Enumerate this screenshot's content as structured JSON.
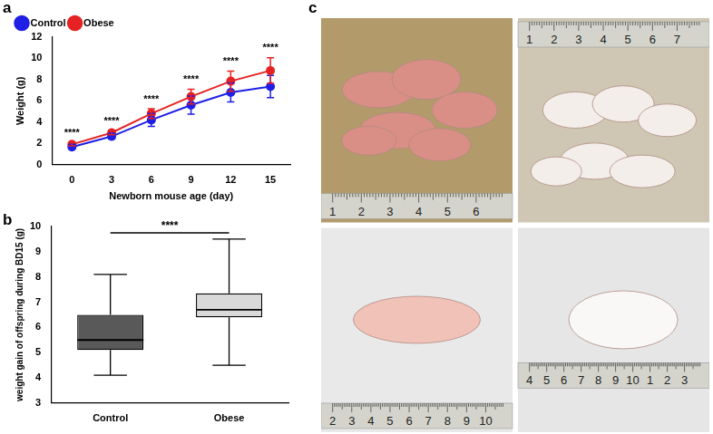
{
  "chart_data": [
    {
      "panel": "a",
      "type": "line",
      "categories": [
        "0",
        "3",
        "6",
        "9",
        "12",
        "15"
      ],
      "x_label": "Newborn mouse age (day)",
      "y_label": "Weight (g)",
      "ylim": [
        0,
        12
      ],
      "yticks": [
        0,
        2,
        4,
        6,
        8,
        10,
        12
      ],
      "grid": false,
      "legend": "top-left",
      "marker": "circle",
      "series": [
        {
          "name": "Control",
          "color": "#1f1fe6",
          "values": [
            1.65,
            2.65,
            4.2,
            5.6,
            6.8,
            7.35
          ],
          "errors": [
            0.15,
            0.25,
            0.6,
            0.85,
            0.9,
            1.05
          ]
        },
        {
          "name": "Obese",
          "color": "#e62222",
          "values": [
            1.9,
            3.0,
            4.8,
            6.4,
            7.85,
            8.85
          ],
          "errors": [
            0.15,
            0.2,
            0.45,
            0.7,
            0.95,
            1.2
          ]
        }
      ],
      "significance": [
        "****",
        "****",
        "****",
        "****",
        "****",
        "****"
      ]
    },
    {
      "panel": "b",
      "type": "box",
      "categories": [
        "Control",
        "Obese"
      ],
      "y_label": "weight gain of offspring during BD15 (g)",
      "ylim": [
        3,
        10
      ],
      "yticks": [
        3,
        4,
        5,
        6,
        7,
        8,
        9,
        10
      ],
      "grid": false,
      "colors": [
        "#595959",
        "#d9d9d9"
      ],
      "boxes": [
        {
          "min": 4.1,
          "q1": 5.1,
          "median": 5.5,
          "q3": 6.5,
          "max": 8.1
        },
        {
          "min": 4.5,
          "q1": 6.4,
          "median": 6.7,
          "q3": 7.35,
          "max": 9.5
        }
      ],
      "significance": "****"
    }
  ],
  "panel_c": {
    "panel": "c",
    "photos": [
      {
        "ruler": [
          1,
          2,
          3,
          4,
          5,
          6
        ]
      },
      {
        "ruler": [
          1,
          2,
          3,
          4,
          5,
          6,
          7
        ]
      },
      {
        "ruler": [
          2,
          3,
          4,
          5,
          6,
          7,
          8,
          9,
          10
        ]
      },
      {
        "ruler": [
          4,
          5,
          6,
          7,
          8,
          9,
          10,
          1,
          2,
          3
        ]
      }
    ]
  }
}
